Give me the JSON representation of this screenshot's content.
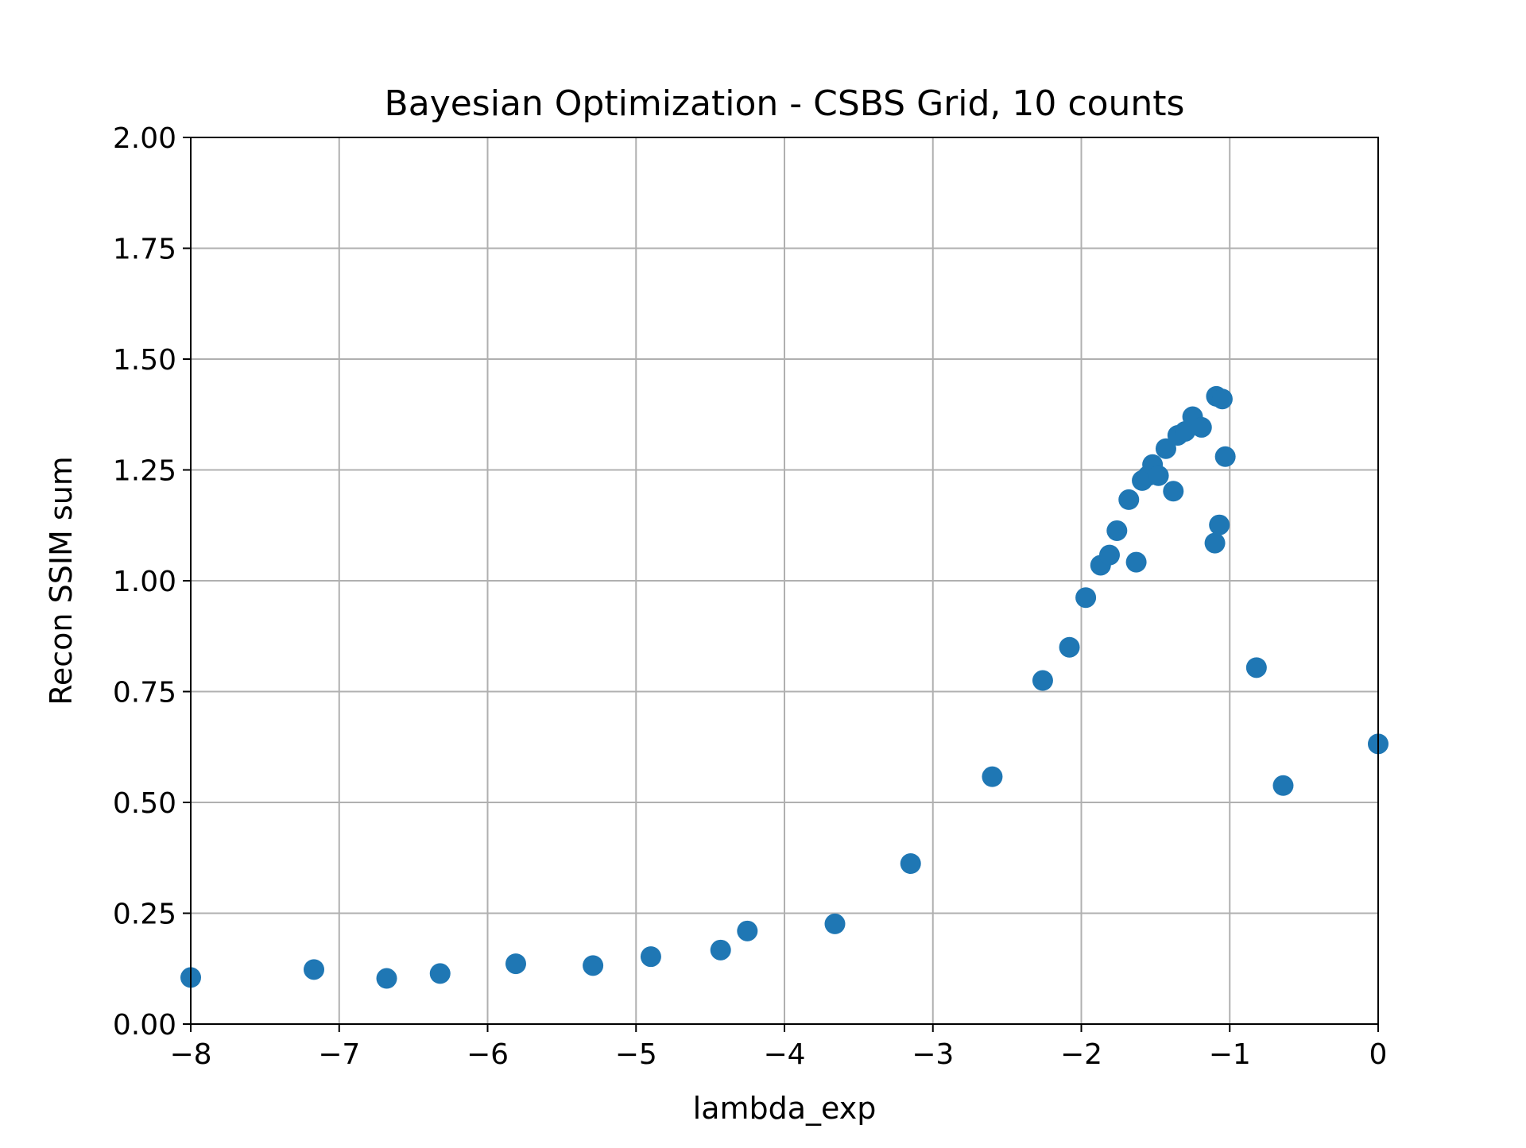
{
  "chart_data": {
    "type": "scatter",
    "title": "Bayesian Optimization - CSBS Grid, 10 counts",
    "xlabel": "lambda_exp",
    "ylabel": "Recon SSIM sum",
    "xlim": [
      -8,
      0
    ],
    "ylim": [
      0,
      2
    ],
    "xticks": [
      -8,
      -7,
      -6,
      -5,
      -4,
      -3,
      -2,
      -1,
      0
    ],
    "xtick_labels": [
      "−8",
      "−7",
      "−6",
      "−5",
      "−4",
      "−3",
      "−2",
      "−1",
      "0"
    ],
    "yticks": [
      0,
      0.25,
      0.5,
      0.75,
      1.0,
      1.25,
      1.5,
      1.75,
      2.0
    ],
    "ytick_labels": [
      "0.00",
      "0.25",
      "0.50",
      "0.75",
      "1.00",
      "1.25",
      "1.50",
      "1.75",
      "2.00"
    ],
    "grid": true,
    "marker_color": "#1f77b4",
    "points": [
      {
        "x": -8.0,
        "y": 0.105
      },
      {
        "x": -7.17,
        "y": 0.123
      },
      {
        "x": -6.68,
        "y": 0.103
      },
      {
        "x": -6.32,
        "y": 0.114
      },
      {
        "x": -5.81,
        "y": 0.136
      },
      {
        "x": -5.29,
        "y": 0.132
      },
      {
        "x": -4.9,
        "y": 0.152
      },
      {
        "x": -4.43,
        "y": 0.167
      },
      {
        "x": -4.25,
        "y": 0.21
      },
      {
        "x": -3.66,
        "y": 0.226
      },
      {
        "x": -3.15,
        "y": 0.362
      },
      {
        "x": -2.6,
        "y": 0.558
      },
      {
        "x": -2.26,
        "y": 0.775
      },
      {
        "x": -2.08,
        "y": 0.85
      },
      {
        "x": -1.97,
        "y": 0.962
      },
      {
        "x": -1.87,
        "y": 1.035
      },
      {
        "x": -1.81,
        "y": 1.058
      },
      {
        "x": -1.76,
        "y": 1.113
      },
      {
        "x": -1.68,
        "y": 1.183
      },
      {
        "x": -1.63,
        "y": 1.042
      },
      {
        "x": -1.59,
        "y": 1.226
      },
      {
        "x": -1.55,
        "y": 1.237
      },
      {
        "x": -1.52,
        "y": 1.262
      },
      {
        "x": -1.48,
        "y": 1.237
      },
      {
        "x": -1.43,
        "y": 1.298
      },
      {
        "x": -1.38,
        "y": 1.202
      },
      {
        "x": -1.35,
        "y": 1.328
      },
      {
        "x": -1.3,
        "y": 1.337
      },
      {
        "x": -1.25,
        "y": 1.37
      },
      {
        "x": -1.19,
        "y": 1.346
      },
      {
        "x": -1.1,
        "y": 1.085
      },
      {
        "x": -1.09,
        "y": 1.416
      },
      {
        "x": -1.07,
        "y": 1.126
      },
      {
        "x": -1.05,
        "y": 1.41
      },
      {
        "x": -1.03,
        "y": 1.28
      },
      {
        "x": -0.82,
        "y": 0.804
      },
      {
        "x": -0.64,
        "y": 0.538
      },
      {
        "x": 0.0,
        "y": 0.632
      }
    ]
  }
}
